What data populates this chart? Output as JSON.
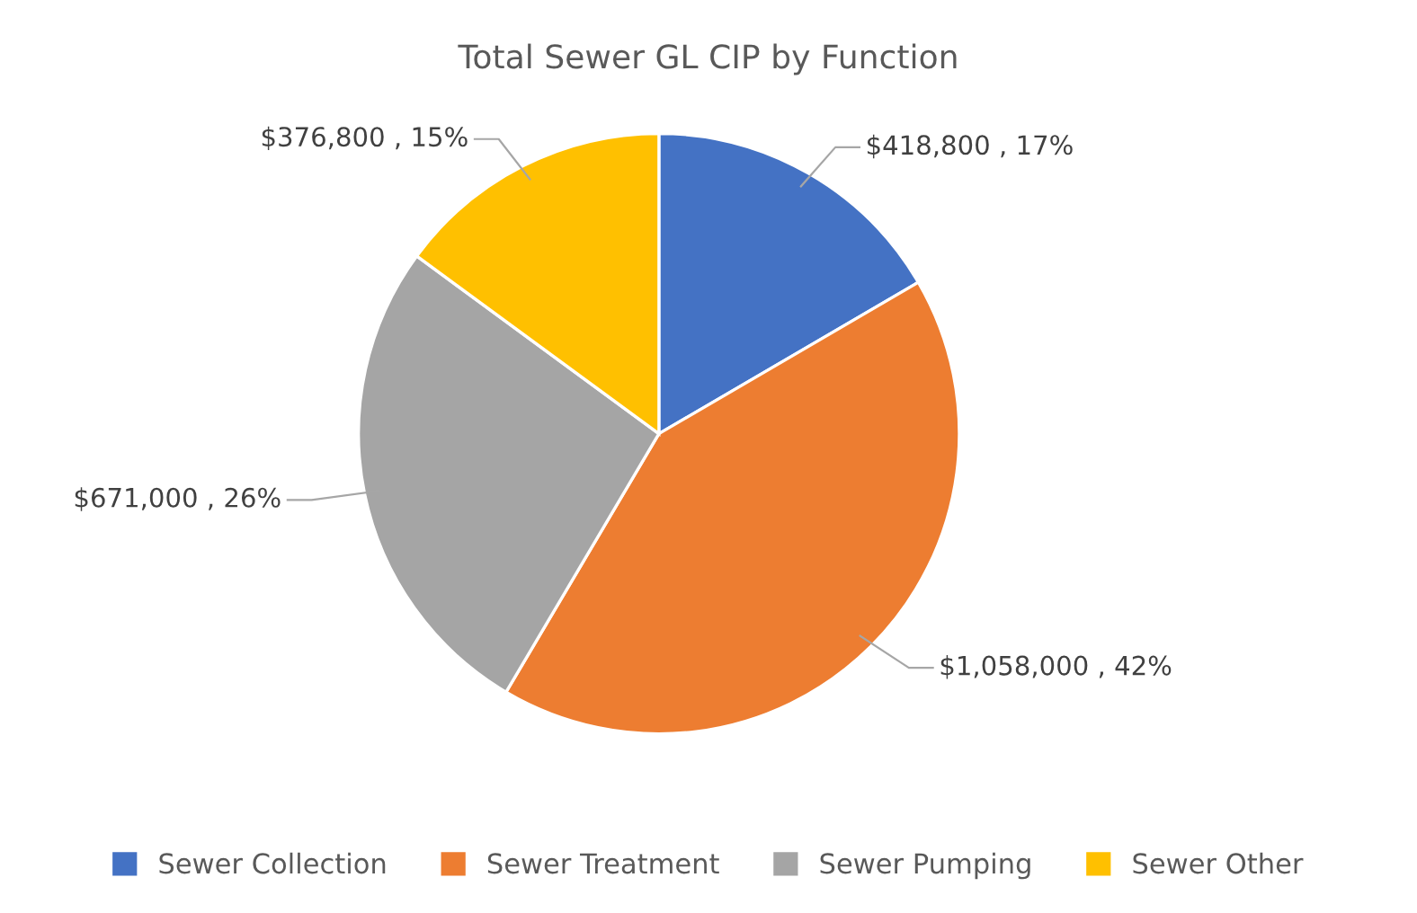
{
  "chart_data": {
    "type": "pie",
    "title": "Total Sewer GL CIP by Function",
    "categories": [
      "Sewer Collection",
      "Sewer Treatment",
      "Sewer Pumping",
      "Sewer Other"
    ],
    "values": [
      418800,
      1058000,
      671000,
      376800
    ],
    "colors": [
      "#4472c4",
      "#ed7d31",
      "#a5a5a5",
      "#ffc000"
    ],
    "value_labels": [
      "$418,800 , 17%",
      "$1,058,000 , 42%",
      "$671,000 , 26%",
      "$376,800 , 15%"
    ],
    "legend": "bottom"
  }
}
